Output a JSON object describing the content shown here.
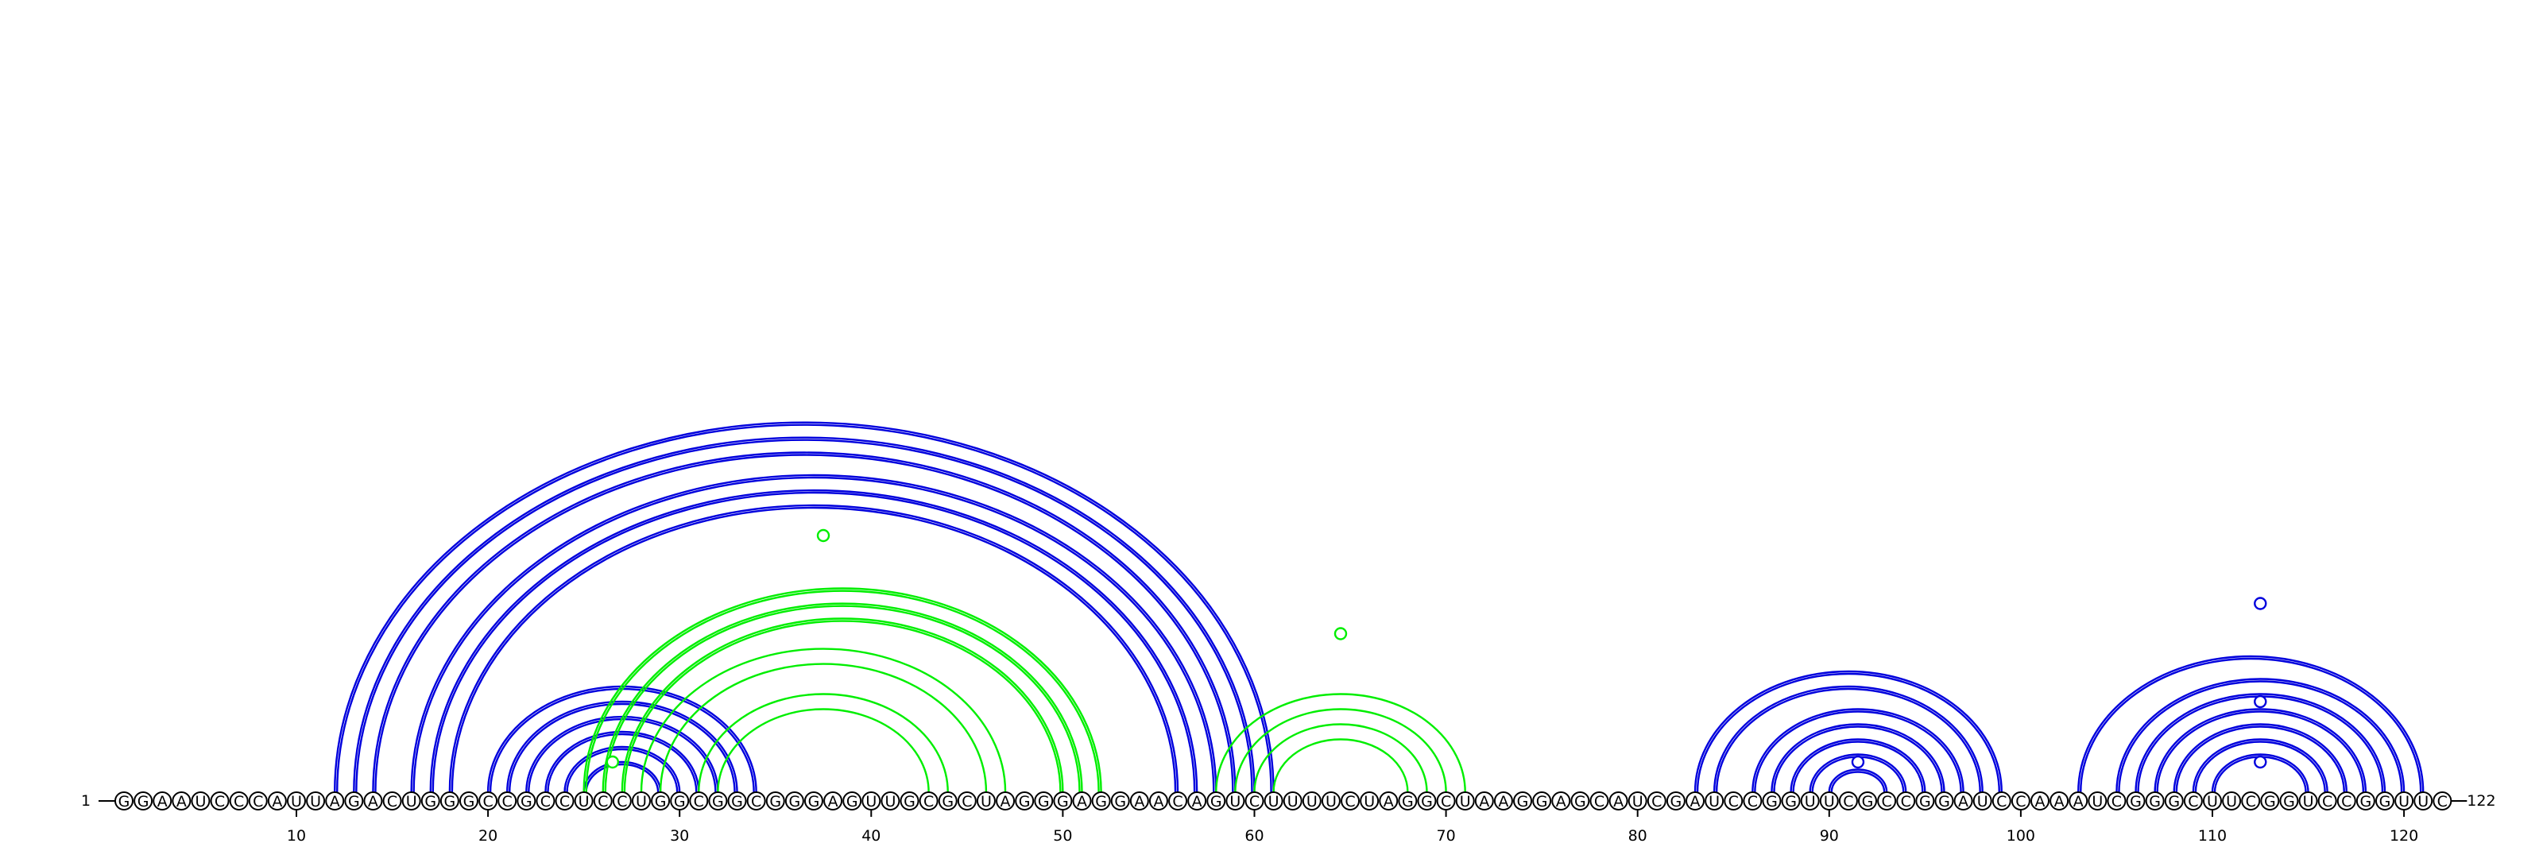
{
  "diagram": {
    "type": "rna-arc-diagram",
    "sequence": "GGAAUCCCAUUAGACUGGGCCGCCUCCUGGCGGCGGGAGUUGCGCUAGGGAGGAACAGUCUUUUCUAGGCUAAGGAGCAUCGAUCCGGUUCGCCGGAUCCAAAUCGGGCUUCGGUCCGGUUC",
    "start_label": "1",
    "end_label": "122",
    "ticks": [
      {
        "position": 10,
        "label": "10"
      },
      {
        "position": 20,
        "label": "20"
      },
      {
        "position": 30,
        "label": "30"
      },
      {
        "position": 40,
        "label": "40"
      },
      {
        "position": 50,
        "label": "50"
      },
      {
        "position": 60,
        "label": "60"
      },
      {
        "position": 70,
        "label": "70"
      },
      {
        "position": 80,
        "label": "80"
      },
      {
        "position": 90,
        "label": "90"
      },
      {
        "position": 100,
        "label": "100"
      },
      {
        "position": 110,
        "label": "110"
      },
      {
        "position": 120,
        "label": "120"
      }
    ],
    "colors": {
      "blue": "#0000dd",
      "green": "#00ee00"
    },
    "arc_groups": [
      {
        "color": "blue",
        "double": true,
        "pairs": [
          [
            12,
            61
          ],
          [
            13,
            60
          ],
          [
            14,
            59
          ],
          [
            16,
            58
          ],
          [
            17,
            57
          ],
          [
            18,
            56
          ]
        ]
      },
      {
        "color": "blue",
        "double": true,
        "pairs": [
          [
            20,
            34
          ],
          [
            21,
            33
          ],
          [
            22,
            32
          ],
          [
            23,
            31
          ],
          [
            24,
            30
          ],
          [
            25,
            29
          ]
        ]
      },
      {
        "color": "green",
        "double": true,
        "pairs": [
          [
            25,
            52
          ],
          [
            26,
            51
          ],
          [
            27,
            50
          ]
        ]
      },
      {
        "color": "green",
        "double": false,
        "pairs": [
          [
            28,
            47
          ],
          [
            29,
            46
          ],
          [
            31,
            44
          ],
          [
            32,
            43
          ]
        ]
      },
      {
        "color": "green",
        "double": false,
        "pairs": [
          [
            58,
            71
          ],
          [
            59,
            70
          ],
          [
            60,
            69
          ],
          [
            61,
            68
          ]
        ]
      },
      {
        "color": "blue",
        "double": true,
        "pairs": [
          [
            83,
            99
          ],
          [
            84,
            98
          ],
          [
            86,
            97
          ],
          [
            87,
            96
          ],
          [
            88,
            95
          ],
          [
            89,
            94
          ],
          [
            90,
            93
          ]
        ]
      },
      {
        "color": "blue",
        "double": true,
        "pairs": [
          [
            103,
            121
          ],
          [
            105,
            120
          ],
          [
            106,
            119
          ],
          [
            107,
            118
          ],
          [
            108,
            117
          ],
          [
            109,
            116
          ],
          [
            110,
            115
          ]
        ]
      }
    ],
    "markers": [
      {
        "position": 37.5,
        "height": 34,
        "color": "green",
        "filled": false
      },
      {
        "position": 64.5,
        "height": 21,
        "color": "green",
        "filled": false
      },
      {
        "position": 26.5,
        "height": 4,
        "color": "green",
        "filled": true
      },
      {
        "position": 91.5,
        "height": 4,
        "color": "blue",
        "filled": false
      },
      {
        "position": 112.5,
        "height": 4,
        "color": "blue",
        "filled": false
      },
      {
        "position": 112.5,
        "height": 12,
        "color": "blue",
        "filled": false
      },
      {
        "position": 112.5,
        "height": 25,
        "color": "blue",
        "filled": false
      }
    ]
  }
}
